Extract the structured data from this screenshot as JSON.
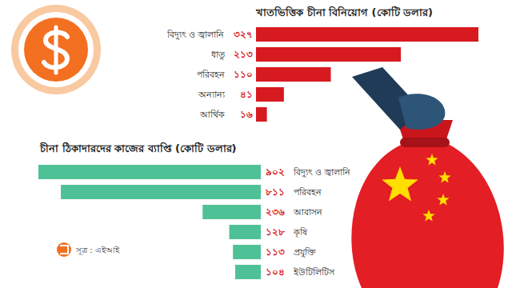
{
  "chart_data": [
    {
      "type": "bar",
      "orientation": "horizontal",
      "title": "খাতভিত্তিক চীনা বিনিয়োগ (কোটি ডলার)",
      "categories": [
        "বিদ্যুৎ ও জ্বালানি",
        "ধাতু",
        "পরিবহন",
        "অন্যান্য",
        "আর্থিক"
      ],
      "values": [
        327,
        213,
        110,
        41,
        16
      ],
      "value_labels": [
        "৩২৭",
        "২১৩",
        "১১০",
        "৪১",
        "১৬"
      ],
      "color": "#d71920",
      "data_labels": true,
      "tick_labels": false,
      "xlim": [
        0,
        327
      ]
    },
    {
      "type": "bar",
      "orientation": "horizontal",
      "title": "চীনা ঠিকাদারদের কাজের ব্যাপ্তি (কোটি ডলার)",
      "categories": [
        "বিদ্যুৎ ও জ্বালানি",
        "পরিবহন",
        "আবাসন",
        "কৃষি",
        "প্রযুক্তি",
        "ইউটিলিটিস"
      ],
      "values": [
        902,
        811,
        236,
        128,
        113,
        104
      ],
      "value_labels": [
        "৯০২",
        "৮১১",
        "২৩৬",
        "১২৮",
        "১১৩",
        "১০৪"
      ],
      "color": "#4fc197",
      "data_labels": true,
      "tick_labels": false,
      "xlim": [
        0,
        902
      ],
      "caption": "সূত্র : এইআই"
    }
  ]
}
